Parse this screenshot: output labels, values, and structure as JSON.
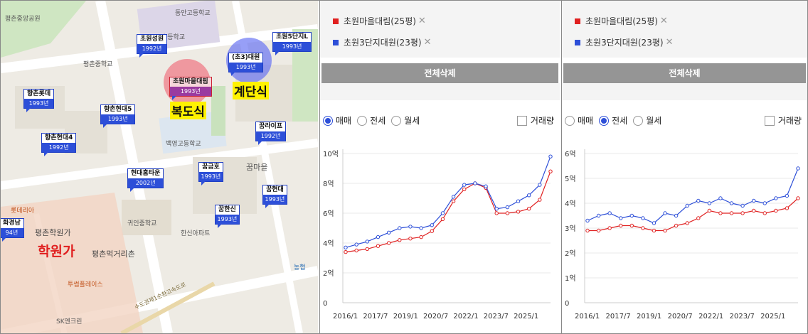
{
  "map": {
    "labels": {
      "park": "평촌중앙공원",
      "school1": "동안고등학교",
      "school2": "초등학교",
      "school3": "평촌중학교",
      "school4": "백영고등학교",
      "school5": "귀인중학교",
      "complex": "꿈마을",
      "avenue": "평촌학원가",
      "food": "평촌먹거리촌",
      "plaza": "투썸플레이스",
      "road": "수도권제1순환고속도로",
      "sk": "SK엔크린",
      "lotte": "롯데리아",
      "hanshin": "한신아파트",
      "nh": "농협"
    },
    "markers": [
      {
        "name": "초원성원",
        "year": "1992년"
      },
      {
        "name": "초원5단지L",
        "year": "1993년"
      },
      {
        "name": "(초3)대원",
        "year": "1993년"
      },
      {
        "name": "초원마을대림",
        "year": "1993년"
      },
      {
        "name": "향촌롯데",
        "year": "1993년"
      },
      {
        "name": "향촌현대5",
        "year": "1993년"
      },
      {
        "name": "향촌현대4",
        "year": "1992년"
      },
      {
        "name": "꿈라이프",
        "year": "1992년"
      },
      {
        "name": "현대홈타운",
        "year": "2002년"
      },
      {
        "name": "꿈금호",
        "year": "1993년"
      },
      {
        "name": "꿈현대",
        "year": "1993년"
      },
      {
        "name": "꿈한신",
        "year": "1993년"
      },
      {
        "name": "화경남",
        "year": "94년"
      }
    ],
    "annotations": {
      "corridor": "복도식",
      "stairs": "계단식",
      "academy": "학원가"
    },
    "colors": {
      "corridor_circle": "#f06b7a",
      "stairs_circle": "#5f6cf2",
      "highlight": "#fff200",
      "academy": "#e02020"
    }
  },
  "panels": [
    {
      "legend": [
        {
          "label": "초원마을대림(25평)",
          "color": "#e02020",
          "remove": "✕"
        },
        {
          "label": "초원3단지대원(23평)",
          "color": "#2d4fd8",
          "remove": "✕"
        }
      ],
      "delete_all": "전체삭제",
      "radios": [
        {
          "label": "매매",
          "checked": true
        },
        {
          "label": "전세",
          "checked": false
        },
        {
          "label": "월세",
          "checked": false
        }
      ],
      "volume": "거래량"
    },
    {
      "legend": [
        {
          "label": "초원마을대림(25평)",
          "color": "#e02020",
          "remove": "✕"
        },
        {
          "label": "초원3단지대원(23평)",
          "color": "#2d4fd8",
          "remove": "✕"
        }
      ],
      "delete_all": "전체삭제",
      "radios": [
        {
          "label": "매매",
          "checked": false
        },
        {
          "label": "전세",
          "checked": true
        },
        {
          "label": "월세",
          "checked": false
        }
      ],
      "volume": "거래량"
    }
  ],
  "chart_data": [
    {
      "type": "line",
      "x": [
        "2016/1",
        "2016/7",
        "2017/1",
        "2017/7",
        "2018/1",
        "2018/7",
        "2019/1",
        "2019/7",
        "2020/1",
        "2020/7",
        "2021/1",
        "2021/7",
        "2022/1",
        "2022/7",
        "2023/1",
        "2023/7",
        "2024/1",
        "2024/7",
        "2025/1",
        "2025/7"
      ],
      "xticks": [
        "2016/1",
        "2017/7",
        "2019/1",
        "2020/7",
        "2022/1",
        "2023/7",
        "2025/1"
      ],
      "yticks": [
        "0",
        "2억",
        "4억",
        "6억",
        "8억",
        "10억"
      ],
      "ylim": [
        0,
        10
      ],
      "series": [
        {
          "name": "초원마을대림(25평)",
          "color": "#e02020",
          "values": [
            3.4,
            3.5,
            3.6,
            3.8,
            4.0,
            4.2,
            4.3,
            4.4,
            4.8,
            5.6,
            6.8,
            7.6,
            8.0,
            7.7,
            6.0,
            6.0,
            6.1,
            6.3,
            6.9,
            8.8
          ]
        },
        {
          "name": "초원3단지대원(23평)",
          "color": "#2d4fd8",
          "values": [
            3.7,
            3.9,
            4.1,
            4.4,
            4.7,
            5.0,
            5.1,
            5.0,
            5.2,
            6.0,
            7.1,
            7.9,
            8.0,
            7.8,
            6.3,
            6.4,
            6.8,
            7.2,
            7.9,
            9.8
          ]
        }
      ]
    },
    {
      "type": "line",
      "x": [
        "2016/1",
        "2016/7",
        "2017/1",
        "2017/7",
        "2018/1",
        "2018/7",
        "2019/1",
        "2019/7",
        "2020/1",
        "2020/7",
        "2021/1",
        "2021/7",
        "2022/1",
        "2022/7",
        "2023/1",
        "2023/7",
        "2024/1",
        "2024/7",
        "2025/1",
        "2025/7"
      ],
      "xticks": [
        "2016/1",
        "2017/7",
        "2019/1",
        "2020/7",
        "2022/1",
        "2023/7",
        "2025/1"
      ],
      "yticks": [
        "0",
        "1억",
        "2억",
        "3억",
        "4억",
        "5억",
        "6억"
      ],
      "ylim": [
        0,
        6
      ],
      "series": [
        {
          "name": "초원마을대림(25평)",
          "color": "#e02020",
          "values": [
            2.9,
            2.9,
            3.0,
            3.1,
            3.1,
            3.0,
            2.9,
            2.9,
            3.1,
            3.2,
            3.4,
            3.7,
            3.6,
            3.6,
            3.6,
            3.7,
            3.6,
            3.7,
            3.8,
            4.2
          ]
        },
        {
          "name": "초원3단지대원(23평)",
          "color": "#2d4fd8",
          "values": [
            3.3,
            3.5,
            3.6,
            3.4,
            3.5,
            3.4,
            3.2,
            3.6,
            3.5,
            3.9,
            4.1,
            4.0,
            4.2,
            4.0,
            3.9,
            4.1,
            4.0,
            4.2,
            4.3,
            5.4
          ]
        }
      ]
    }
  ]
}
